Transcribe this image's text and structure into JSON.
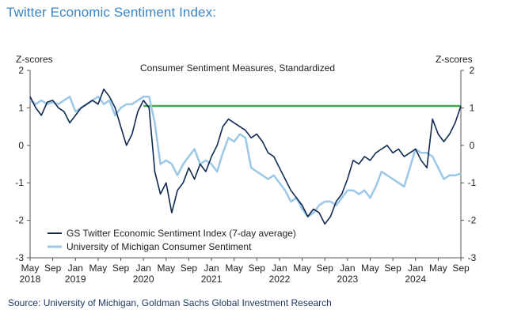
{
  "heading": "Twitter Economic Sentiment Index:",
  "source": "Source: University of Michigan, Goldman Sachs Global Investment Research",
  "chart_data": {
    "type": "line",
    "title": "Consumer Sentiment Measures, Standardized",
    "ylabel_left": "Z-scores",
    "ylabel_right": "Z-scores",
    "ylim": [
      -3,
      2
    ],
    "yticks": [
      2,
      1,
      0,
      -1,
      -2,
      -3
    ],
    "x_range": [
      "2018-05",
      "2024-09"
    ],
    "x_ticks": [
      {
        "month": "May",
        "year": "2018",
        "date": "2018-05"
      },
      {
        "month": "Sep",
        "year": "",
        "date": "2018-09"
      },
      {
        "month": "Jan",
        "year": "2019",
        "date": "2019-01"
      },
      {
        "month": "May",
        "year": "",
        "date": "2019-05"
      },
      {
        "month": "Sep",
        "year": "",
        "date": "2019-09"
      },
      {
        "month": "Jan",
        "year": "2020",
        "date": "2020-01"
      },
      {
        "month": "May",
        "year": "",
        "date": "2020-05"
      },
      {
        "month": "Sep",
        "year": "",
        "date": "2020-09"
      },
      {
        "month": "Jan",
        "year": "2021",
        "date": "2021-01"
      },
      {
        "month": "May",
        "year": "",
        "date": "2021-05"
      },
      {
        "month": "Sep",
        "year": "",
        "date": "2021-09"
      },
      {
        "month": "Jan",
        "year": "2022",
        "date": "2022-01"
      },
      {
        "month": "May",
        "year": "",
        "date": "2022-05"
      },
      {
        "month": "Sep",
        "year": "",
        "date": "2022-09"
      },
      {
        "month": "Jan",
        "year": "2023",
        "date": "2023-01"
      },
      {
        "month": "May",
        "year": "",
        "date": "2023-05"
      },
      {
        "month": "Sep",
        "year": "",
        "date": "2023-09"
      },
      {
        "month": "Jan",
        "year": "2024",
        "date": "2024-01"
      },
      {
        "month": "May",
        "year": "",
        "date": "2024-05"
      },
      {
        "month": "Sep",
        "year": "",
        "date": "2024-09"
      }
    ],
    "legend_placement": "bottom-left",
    "grid": false,
    "reference_line": {
      "value": 1.05,
      "from": "2020-01",
      "to": "2024-09",
      "color": "#3aaa4a"
    },
    "series": [
      {
        "name": "GS Twitter Economic Sentiment Index (7-day average)",
        "color": "#0f2a52",
        "points": [
          [
            "2018-05",
            1.3
          ],
          [
            "2018-06",
            1.0
          ],
          [
            "2018-07",
            0.8
          ],
          [
            "2018-08",
            1.15
          ],
          [
            "2018-09",
            1.2
          ],
          [
            "2018-10",
            1.0
          ],
          [
            "2018-11",
            0.9
          ],
          [
            "2018-12",
            0.6
          ],
          [
            "2019-01",
            0.8
          ],
          [
            "2019-02",
            1.0
          ],
          [
            "2019-03",
            1.1
          ],
          [
            "2019-04",
            1.2
          ],
          [
            "2019-05",
            1.1
          ],
          [
            "2019-06",
            1.5
          ],
          [
            "2019-07",
            1.3
          ],
          [
            "2019-08",
            1.0
          ],
          [
            "2019-09",
            0.5
          ],
          [
            "2019-10",
            0.0
          ],
          [
            "2019-11",
            0.3
          ],
          [
            "2019-12",
            0.9
          ],
          [
            "2020-01",
            1.2
          ],
          [
            "2020-02",
            1.0
          ],
          [
            "2020-03",
            -0.7
          ],
          [
            "2020-04",
            -1.3
          ],
          [
            "2020-05",
            -1.0
          ],
          [
            "2020-06",
            -1.8
          ],
          [
            "2020-07",
            -1.2
          ],
          [
            "2020-08",
            -1.0
          ],
          [
            "2020-09",
            -0.6
          ],
          [
            "2020-10",
            -0.9
          ],
          [
            "2020-11",
            -0.5
          ],
          [
            "2020-12",
            -0.7
          ],
          [
            "2021-01",
            -0.3
          ],
          [
            "2021-02",
            0.0
          ],
          [
            "2021-03",
            0.5
          ],
          [
            "2021-04",
            0.7
          ],
          [
            "2021-05",
            0.6
          ],
          [
            "2021-06",
            0.5
          ],
          [
            "2021-07",
            0.4
          ],
          [
            "2021-08",
            0.2
          ],
          [
            "2021-09",
            0.3
          ],
          [
            "2021-10",
            0.1
          ],
          [
            "2021-11",
            -0.2
          ],
          [
            "2021-12",
            -0.3
          ],
          [
            "2022-01",
            -0.6
          ],
          [
            "2022-02",
            -0.9
          ],
          [
            "2022-03",
            -1.2
          ],
          [
            "2022-04",
            -1.4
          ],
          [
            "2022-05",
            -1.6
          ],
          [
            "2022-06",
            -1.9
          ],
          [
            "2022-07",
            -1.7
          ],
          [
            "2022-08",
            -1.8
          ],
          [
            "2022-09",
            -2.1
          ],
          [
            "2022-10",
            -1.9
          ],
          [
            "2022-11",
            -1.5
          ],
          [
            "2022-12",
            -1.3
          ],
          [
            "2023-01",
            -0.9
          ],
          [
            "2023-02",
            -0.4
          ],
          [
            "2023-03",
            -0.5
          ],
          [
            "2023-04",
            -0.3
          ],
          [
            "2023-05",
            -0.4
          ],
          [
            "2023-06",
            -0.2
          ],
          [
            "2023-07",
            -0.1
          ],
          [
            "2023-08",
            0.0
          ],
          [
            "2023-09",
            -0.2
          ],
          [
            "2023-10",
            -0.1
          ],
          [
            "2023-11",
            -0.3
          ],
          [
            "2023-12",
            -0.2
          ],
          [
            "2024-01",
            -0.1
          ],
          [
            "2024-02",
            -0.4
          ],
          [
            "2024-03",
            -0.6
          ],
          [
            "2024-04",
            0.7
          ],
          [
            "2024-05",
            0.3
          ],
          [
            "2024-06",
            0.1
          ],
          [
            "2024-07",
            0.3
          ],
          [
            "2024-08",
            0.6
          ],
          [
            "2024-09",
            1.05
          ]
        ]
      },
      {
        "name": "University of Michigan Consumer Sentiment",
        "color": "#9cc8e8",
        "points": [
          [
            "2018-05",
            1.2
          ],
          [
            "2018-06",
            1.1
          ],
          [
            "2018-07",
            1.2
          ],
          [
            "2018-08",
            1.1
          ],
          [
            "2018-09",
            1.15
          ],
          [
            "2018-10",
            1.1
          ],
          [
            "2018-11",
            1.2
          ],
          [
            "2018-12",
            1.3
          ],
          [
            "2019-01",
            0.9
          ],
          [
            "2019-02",
            1.0
          ],
          [
            "2019-03",
            1.1
          ],
          [
            "2019-04",
            1.2
          ],
          [
            "2019-05",
            1.3
          ],
          [
            "2019-06",
            1.1
          ],
          [
            "2019-07",
            1.2
          ],
          [
            "2019-08",
            0.8
          ],
          [
            "2019-09",
            1.0
          ],
          [
            "2019-10",
            1.1
          ],
          [
            "2019-11",
            1.1
          ],
          [
            "2019-12",
            1.2
          ],
          [
            "2020-01",
            1.3
          ],
          [
            "2020-02",
            1.3
          ],
          [
            "2020-03",
            0.6
          ],
          [
            "2020-04",
            -0.5
          ],
          [
            "2020-05",
            -0.4
          ],
          [
            "2020-06",
            -0.5
          ],
          [
            "2020-07",
            -0.8
          ],
          [
            "2020-08",
            -0.5
          ],
          [
            "2020-09",
            -0.3
          ],
          [
            "2020-10",
            -0.1
          ],
          [
            "2020-11",
            -0.5
          ],
          [
            "2020-12",
            -0.4
          ],
          [
            "2021-01",
            -0.5
          ],
          [
            "2021-02",
            -0.7
          ],
          [
            "2021-03",
            -0.2
          ],
          [
            "2021-04",
            0.2
          ],
          [
            "2021-05",
            0.1
          ],
          [
            "2021-06",
            0.3
          ],
          [
            "2021-07",
            0.2
          ],
          [
            "2021-08",
            -0.6
          ],
          [
            "2021-09",
            -0.7
          ],
          [
            "2021-10",
            -0.8
          ],
          [
            "2021-11",
            -0.9
          ],
          [
            "2021-12",
            -0.8
          ],
          [
            "2022-01",
            -1.0
          ],
          [
            "2022-02",
            -1.2
          ],
          [
            "2022-03",
            -1.5
          ],
          [
            "2022-04",
            -1.4
          ],
          [
            "2022-05",
            -1.7
          ],
          [
            "2022-06",
            -1.9
          ],
          [
            "2022-07",
            -1.8
          ],
          [
            "2022-08",
            -1.6
          ],
          [
            "2022-09",
            -1.5
          ],
          [
            "2022-10",
            -1.5
          ],
          [
            "2022-11",
            -1.6
          ],
          [
            "2022-12",
            -1.4
          ],
          [
            "2023-01",
            -1.2
          ],
          [
            "2023-02",
            -1.2
          ],
          [
            "2023-03",
            -1.3
          ],
          [
            "2023-04",
            -1.2
          ],
          [
            "2023-05",
            -1.4
          ],
          [
            "2023-06",
            -1.1
          ],
          [
            "2023-07",
            -0.7
          ],
          [
            "2023-08",
            -0.8
          ],
          [
            "2023-09",
            -0.9
          ],
          [
            "2023-10",
            -1.0
          ],
          [
            "2023-11",
            -1.1
          ],
          [
            "2023-12",
            -0.6
          ],
          [
            "2024-01",
            -0.1
          ],
          [
            "2024-02",
            -0.2
          ],
          [
            "2024-03",
            -0.2
          ],
          [
            "2024-04",
            -0.3
          ],
          [
            "2024-05",
            -0.6
          ],
          [
            "2024-06",
            -0.9
          ],
          [
            "2024-07",
            -0.8
          ],
          [
            "2024-08",
            -0.8
          ],
          [
            "2024-09",
            -0.75
          ]
        ]
      }
    ]
  }
}
